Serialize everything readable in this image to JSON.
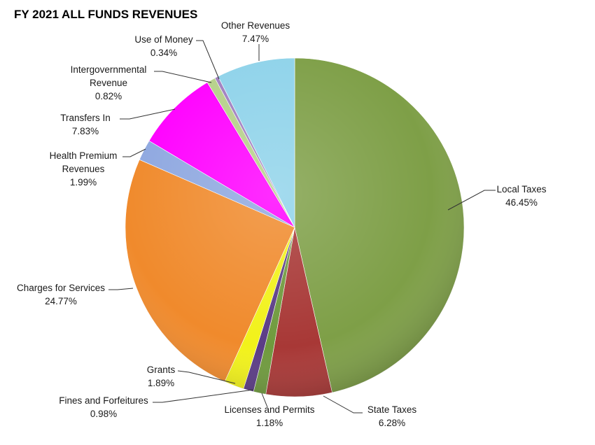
{
  "chart_data": {
    "type": "pie",
    "title": "FY 2021 ALL FUNDS REVENUES",
    "slices": [
      {
        "label": "Local Taxes",
        "value": 46.45,
        "display": [
          "Local Taxes",
          "46.45%"
        ],
        "color": "#7e9f47"
      },
      {
        "label": "State Taxes",
        "value": 6.28,
        "display": [
          "State Taxes",
          "6.28%"
        ],
        "color": "#a83836"
      },
      {
        "label": "Licenses and Permits",
        "value": 1.18,
        "display": [
          "Licenses and Permits",
          "1.18%"
        ],
        "color": "#6f9a3d"
      },
      {
        "label": "Fines and Forfeitures",
        "value": 0.98,
        "display": [
          "Fines and Forfeitures",
          "0.98%"
        ],
        "color": "#5b3c86"
      },
      {
        "label": "Grants",
        "value": 1.89,
        "display": [
          "Grants",
          "1.89%"
        ],
        "color": "#f2f21a"
      },
      {
        "label": "Charges for Services",
        "value": 24.77,
        "display": [
          "Charges for Services",
          "24.77%"
        ],
        "color": "#f08a2c"
      },
      {
        "label": "Health Premium Revenues",
        "value": 1.99,
        "display": [
          "Health Premium",
          "Revenues",
          "1.99%"
        ],
        "color": "#8fa8e0"
      },
      {
        "label": "Transfers In",
        "value": 7.83,
        "display": [
          "Transfers In",
          "7.83%"
        ],
        "color": "#ff00ff"
      },
      {
        "label": "Intergovernmental Revenue",
        "value": 0.82,
        "display": [
          "Intergovernmental",
          "Revenue",
          "0.82%"
        ],
        "color": "#b6d08a"
      },
      {
        "label": "Use of Money",
        "value": 0.34,
        "display": [
          "Use of Money",
          "0.34%"
        ],
        "color": "#a07fc0"
      },
      {
        "label": "Other Revenues",
        "value": 7.47,
        "display": [
          "Other Revenues",
          "7.47%"
        ],
        "color": "#8fd3ea"
      }
    ]
  }
}
